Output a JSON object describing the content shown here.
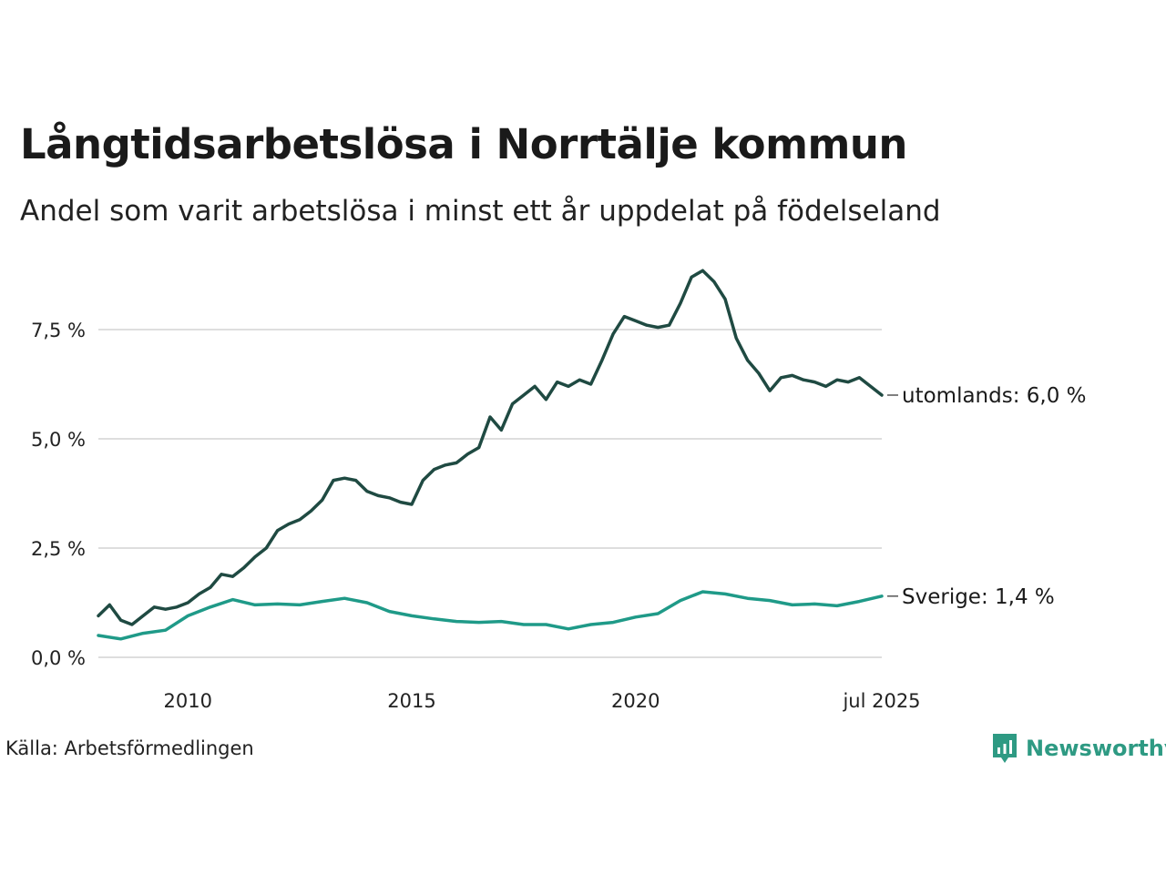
{
  "header": {
    "title": "Långtidsarbetslösa i Norrtälje kommun",
    "subtitle": "Andel som varit arbetslösa i minst ett år uppdelat på födelseland"
  },
  "footer": {
    "source": "Källa: Arbetsförmedlingen",
    "brand": "Newsworthy",
    "brand_color": "#2e9a83"
  },
  "chart_data": {
    "type": "line",
    "title": "Långtidsarbetslösa i Norrtälje kommun",
    "subtitle": "Andel som varit arbetslösa i minst ett år uppdelat på födelseland",
    "xlabel": "",
    "ylabel": "",
    "x_range": [
      "2008-01",
      "2025-07"
    ],
    "ylim": [
      0,
      9
    ],
    "grid": true,
    "legend": "none",
    "y_ticks": [
      {
        "value": 0,
        "label": "0,0 %"
      },
      {
        "value": 2.5,
        "label": "2,5 %"
      },
      {
        "value": 5,
        "label": "5,0 %"
      },
      {
        "value": 7.5,
        "label": "7,5 %"
      }
    ],
    "x_ticks": [
      {
        "value": "2010-01",
        "label": "2010"
      },
      {
        "value": "2015-01",
        "label": "2015"
      },
      {
        "value": "2020-01",
        "label": "2020"
      },
      {
        "value": "2025-07",
        "label": "jul 2025"
      }
    ],
    "series": [
      {
        "name": "utomlands",
        "end_label": "utomlands: 6,0 %",
        "color": "#1f4a42",
        "points": [
          [
            "2008-01",
            0.95
          ],
          [
            "2008-04",
            1.2
          ],
          [
            "2008-07",
            0.85
          ],
          [
            "2008-10",
            0.75
          ],
          [
            "2009-01",
            0.95
          ],
          [
            "2009-04",
            1.15
          ],
          [
            "2009-07",
            1.1
          ],
          [
            "2009-10",
            1.15
          ],
          [
            "2010-01",
            1.25
          ],
          [
            "2010-04",
            1.45
          ],
          [
            "2010-07",
            1.6
          ],
          [
            "2010-10",
            1.9
          ],
          [
            "2011-01",
            1.85
          ],
          [
            "2011-04",
            2.05
          ],
          [
            "2011-07",
            2.3
          ],
          [
            "2011-10",
            2.5
          ],
          [
            "2012-01",
            2.9
          ],
          [
            "2012-04",
            3.05
          ],
          [
            "2012-07",
            3.15
          ],
          [
            "2012-10",
            3.35
          ],
          [
            "2013-01",
            3.6
          ],
          [
            "2013-04",
            4.05
          ],
          [
            "2013-07",
            4.1
          ],
          [
            "2013-10",
            4.05
          ],
          [
            "2014-01",
            3.8
          ],
          [
            "2014-04",
            3.7
          ],
          [
            "2014-07",
            3.65
          ],
          [
            "2014-10",
            3.55
          ],
          [
            "2015-01",
            3.5
          ],
          [
            "2015-04",
            4.05
          ],
          [
            "2015-07",
            4.3
          ],
          [
            "2015-10",
            4.4
          ],
          [
            "2016-01",
            4.45
          ],
          [
            "2016-04",
            4.65
          ],
          [
            "2016-07",
            4.8
          ],
          [
            "2016-10",
            5.5
          ],
          [
            "2017-01",
            5.2
          ],
          [
            "2017-04",
            5.8
          ],
          [
            "2017-07",
            6.0
          ],
          [
            "2017-10",
            6.2
          ],
          [
            "2018-01",
            5.9
          ],
          [
            "2018-04",
            6.3
          ],
          [
            "2018-07",
            6.2
          ],
          [
            "2018-10",
            6.35
          ],
          [
            "2019-01",
            6.25
          ],
          [
            "2019-04",
            6.8
          ],
          [
            "2019-07",
            7.4
          ],
          [
            "2019-10",
            7.8
          ],
          [
            "2020-01",
            7.7
          ],
          [
            "2020-04",
            7.6
          ],
          [
            "2020-07",
            7.55
          ],
          [
            "2020-10",
            7.6
          ],
          [
            "2021-01",
            8.1
          ],
          [
            "2021-04",
            8.7
          ],
          [
            "2021-07",
            8.85
          ],
          [
            "2021-10",
            8.6
          ],
          [
            "2022-01",
            8.2
          ],
          [
            "2022-04",
            7.3
          ],
          [
            "2022-07",
            6.8
          ],
          [
            "2022-10",
            6.5
          ],
          [
            "2023-01",
            6.1
          ],
          [
            "2023-04",
            6.4
          ],
          [
            "2023-07",
            6.45
          ],
          [
            "2023-10",
            6.35
          ],
          [
            "2024-01",
            6.3
          ],
          [
            "2024-04",
            6.2
          ],
          [
            "2024-07",
            6.35
          ],
          [
            "2024-10",
            6.3
          ],
          [
            "2025-01",
            6.4
          ],
          [
            "2025-04",
            6.2
          ],
          [
            "2025-07",
            6.0
          ]
        ]
      },
      {
        "name": "Sverige",
        "end_label": "Sverige: 1,4 %",
        "color": "#1f9a88",
        "points": [
          [
            "2008-01",
            0.5
          ],
          [
            "2008-07",
            0.42
          ],
          [
            "2009-01",
            0.55
          ],
          [
            "2009-07",
            0.62
          ],
          [
            "2010-01",
            0.95
          ],
          [
            "2010-07",
            1.15
          ],
          [
            "2011-01",
            1.32
          ],
          [
            "2011-07",
            1.2
          ],
          [
            "2012-01",
            1.22
          ],
          [
            "2012-07",
            1.2
          ],
          [
            "2013-01",
            1.28
          ],
          [
            "2013-07",
            1.35
          ],
          [
            "2014-01",
            1.25
          ],
          [
            "2014-07",
            1.05
          ],
          [
            "2015-01",
            0.95
          ],
          [
            "2015-07",
            0.88
          ],
          [
            "2016-01",
            0.82
          ],
          [
            "2016-07",
            0.8
          ],
          [
            "2017-01",
            0.82
          ],
          [
            "2017-07",
            0.75
          ],
          [
            "2018-01",
            0.75
          ],
          [
            "2018-07",
            0.65
          ],
          [
            "2019-01",
            0.75
          ],
          [
            "2019-07",
            0.8
          ],
          [
            "2020-01",
            0.92
          ],
          [
            "2020-07",
            1.0
          ],
          [
            "2021-01",
            1.3
          ],
          [
            "2021-07",
            1.5
          ],
          [
            "2022-01",
            1.45
          ],
          [
            "2022-07",
            1.35
          ],
          [
            "2023-01",
            1.3
          ],
          [
            "2023-07",
            1.2
          ],
          [
            "2024-01",
            1.22
          ],
          [
            "2024-07",
            1.18
          ],
          [
            "2025-01",
            1.28
          ],
          [
            "2025-07",
            1.4
          ]
        ]
      }
    ]
  }
}
